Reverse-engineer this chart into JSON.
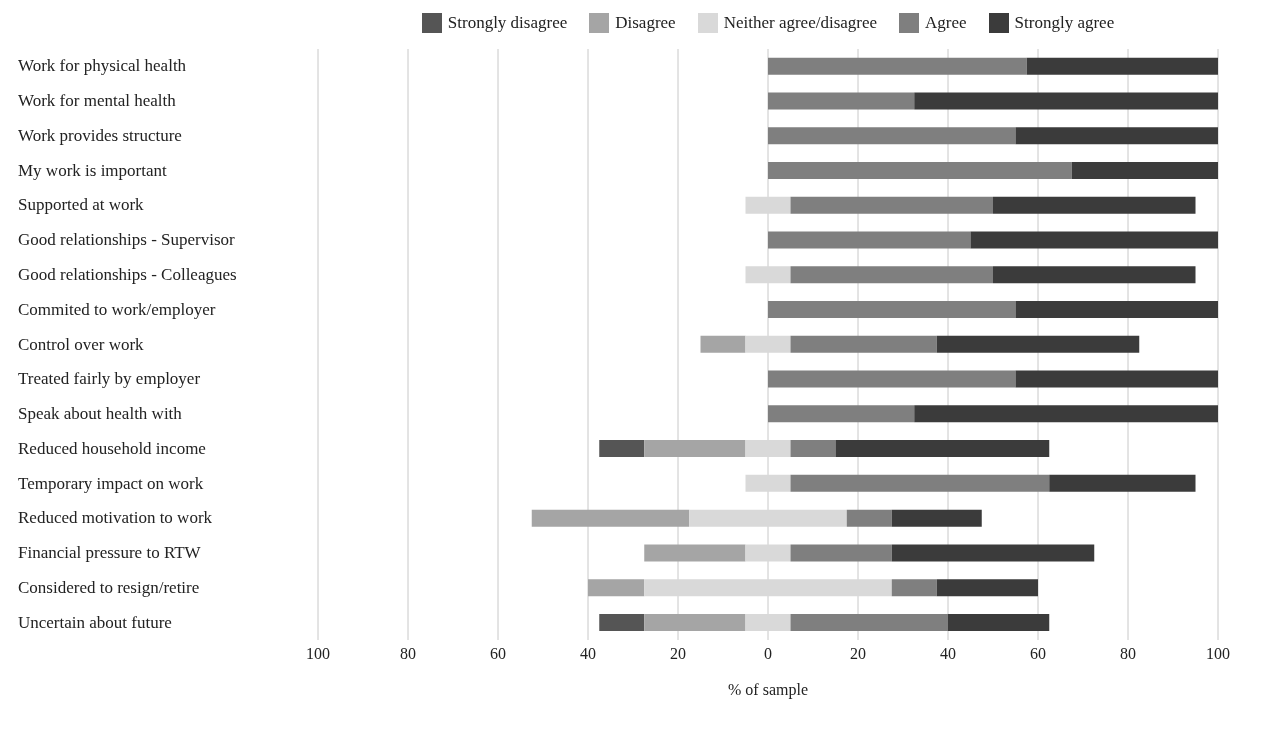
{
  "chart_data": {
    "type": "bar",
    "orientation": "horizontal",
    "xlabel": "% of sample",
    "categories": [
      "Work for physical health",
      "Work for mental health",
      "Work provides structure",
      "My work is important",
      "Supported at work",
      "Good relationships - Supervisor",
      "Good relationships - Colleagues",
      "Commited to work/employer",
      "Control over work",
      "Treated fairly by employer",
      "Speak about health with",
      "Reduced household income",
      "Temporary impact on work",
      "Reduced motivation to work",
      "Financial pressure to RTW",
      "Considered to resign/retire",
      "Uncertain about future"
    ],
    "series": [
      {
        "name": "Strongly disagree",
        "color": "#555555",
        "base": [
          null,
          null,
          null,
          null,
          null,
          null,
          null,
          null,
          null,
          null,
          null,
          -37.5,
          null,
          null,
          null,
          null,
          -37.5
        ],
        "values": [
          null,
          null,
          null,
          null,
          null,
          null,
          null,
          null,
          null,
          null,
          null,
          10,
          null,
          null,
          null,
          null,
          10
        ]
      },
      {
        "name": "Disagree",
        "color": "#a5a5a5",
        "base": [
          null,
          null,
          null,
          null,
          null,
          null,
          null,
          null,
          -15,
          null,
          null,
          -27.5,
          null,
          -52.5,
          -27.5,
          -40,
          -27.5
        ],
        "values": [
          null,
          null,
          null,
          null,
          null,
          null,
          null,
          null,
          10,
          null,
          null,
          22.5,
          null,
          35,
          22.5,
          12.5,
          22.5
        ]
      },
      {
        "name": "Neither agree/disagree",
        "color": "#d9d9d9",
        "base": [
          null,
          null,
          null,
          null,
          -5,
          null,
          -5,
          null,
          -5,
          null,
          null,
          -5,
          -5,
          -17.5,
          -5,
          -27.5,
          -5
        ],
        "values": [
          null,
          null,
          null,
          null,
          10,
          null,
          10,
          null,
          10,
          null,
          null,
          10,
          10,
          35,
          10,
          55,
          10
        ]
      },
      {
        "name": "Agree",
        "color": "#7f7f7f",
        "base": [
          0,
          0,
          0,
          0,
          5,
          0,
          5,
          0,
          5,
          0,
          0,
          5,
          5,
          17.5,
          5,
          27.5,
          5
        ],
        "values": [
          57.5,
          32.5,
          55,
          67.5,
          45,
          45,
          45,
          55,
          32.5,
          55,
          32.5,
          10,
          57.5,
          10,
          22.5,
          10,
          35
        ]
      },
      {
        "name": "Strongly agree",
        "color": "#3b3b3b",
        "base": [
          57.5,
          32.5,
          55,
          67.5,
          50,
          45,
          50,
          55,
          37.5,
          55,
          32.5,
          15,
          62.5,
          27.5,
          27.5,
          37.5,
          40
        ],
        "values": [
          42.5,
          67.5,
          45,
          32.5,
          45,
          55,
          45,
          45,
          45,
          45,
          67.5,
          47.5,
          32.5,
          20,
          45,
          22.5,
          22.5
        ]
      }
    ],
    "xlim": [
      -100,
      100
    ],
    "xticks": [
      {
        "value": -100,
        "label": "100"
      },
      {
        "value": -80,
        "label": "80"
      },
      {
        "value": -60,
        "label": "60"
      },
      {
        "value": -40,
        "label": "40"
      },
      {
        "value": -20,
        "label": "20"
      },
      0,
      20,
      40,
      60,
      80,
      100
    ],
    "grid": "x",
    "legend": "top"
  }
}
